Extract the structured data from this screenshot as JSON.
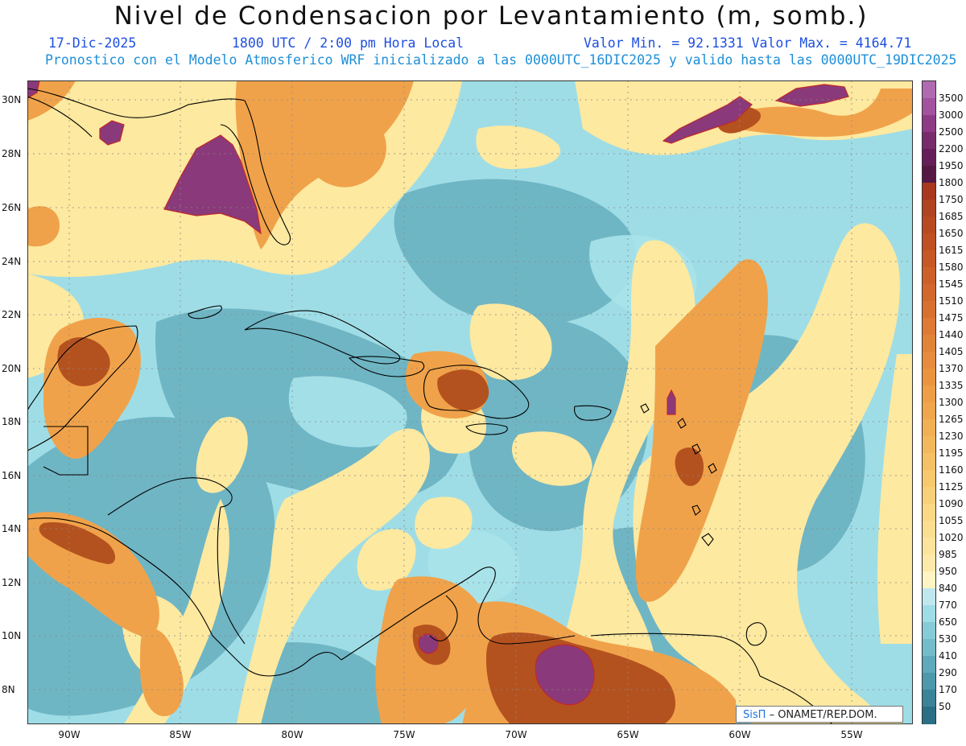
{
  "header": {
    "title": "Nivel de Condensacion por Levantamiento (m, somb.)",
    "date": "17-Dic-2025",
    "time": "1800 UTC / 2:00 pm Hora Local",
    "range": "Valor Min. = 92.1331  Valor Max. = 4164.71",
    "description": "Pronostico con el Modelo Atmosferico WRF inicializado a las 0000UTC_16DIC2025 y valido hasta las  0000UTC_19DIC2025"
  },
  "map": {
    "lat_labels": [
      "30N",
      "28N",
      "26N",
      "24N",
      "22N",
      "20N",
      "18N",
      "16N",
      "14N",
      "12N",
      "10N",
      "8N"
    ],
    "lon_labels": [
      "90W",
      "85W",
      "80W",
      "75W",
      "70W",
      "65W",
      "60W",
      "55W"
    ],
    "lat_range": [
      6.7,
      30.7
    ],
    "lon_range": [
      -91.8,
      -52.2
    ],
    "colors": {
      "low": "#5aa6b8",
      "cyan": "#9fdde6",
      "yellow": "#fde9a0",
      "orange": "#f0a24a",
      "brown": "#b4521f",
      "purple": "#8a3a7a",
      "land_line": "#000000"
    }
  },
  "colorbar": {
    "labels": [
      "3500",
      "3000",
      "2500",
      "2200",
      "1950",
      "1800",
      "1750",
      "1685",
      "1650",
      "1615",
      "1580",
      "1545",
      "1510",
      "1475",
      "1440",
      "1405",
      "1370",
      "1335",
      "1300",
      "1265",
      "1230",
      "1195",
      "1160",
      "1125",
      "1090",
      "1055",
      "1020",
      "985",
      "950",
      "840",
      "770",
      "650",
      "530",
      "410",
      "290",
      "170",
      "50"
    ],
    "colors": [
      "#b06ab0",
      "#a352a0",
      "#8e3a84",
      "#782c6c",
      "#661e58",
      "#551844",
      "#a8381e",
      "#b04420",
      "#b84a22",
      "#c05024",
      "#c65826",
      "#cc6028",
      "#d2682c",
      "#d87030",
      "#de7a34",
      "#e28438",
      "#e68c3c",
      "#ea9440",
      "#ee9e46",
      "#f0a64c",
      "#f2b054",
      "#f4b85c",
      "#f6c064",
      "#f8c86c",
      "#f8d078",
      "#fad884",
      "#fbde90",
      "#fce49c",
      "#fdeaa8",
      "#fef4c4",
      "#bfe8ee",
      "#9fdde6",
      "#86ccd8",
      "#72bccb",
      "#5eaabc",
      "#4c98ac",
      "#3a8398",
      "#2a6f86"
    ]
  },
  "credit": {
    "sis": "SisΠ",
    "text": "– ONAMET/REP.DOM."
  }
}
